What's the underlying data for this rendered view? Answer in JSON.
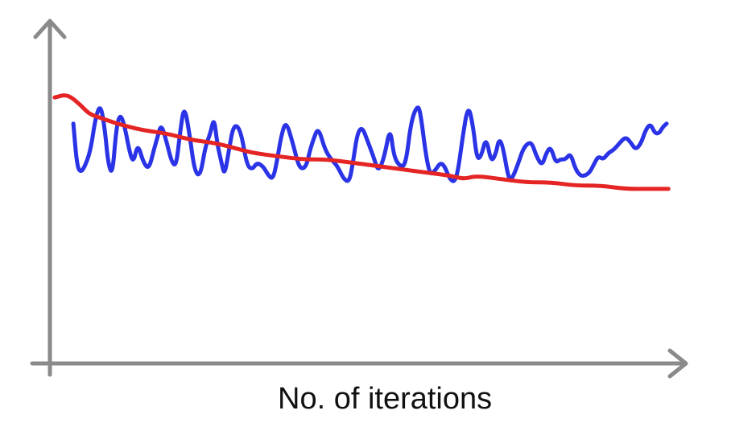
{
  "chart_data": {
    "type": "line",
    "xlabel": "No. of iterations",
    "ylabel": "",
    "xlim": [
      0,
      100
    ],
    "ylim": [
      0,
      100
    ],
    "grid": false,
    "legend": "none",
    "series": [
      {
        "color": "#2a33e6",
        "x": [
          3,
          3.6,
          4.2,
          4.9,
          5.8,
          6.6,
          7.4,
          8.1,
          8.6,
          9.3,
          9.9,
          10.5,
          11.2,
          12.1,
          12.7,
          13.4,
          14.3,
          15.2,
          16,
          16.6,
          17.2,
          18.1,
          18.9,
          19.6,
          20.2,
          20.9,
          21.8,
          22.6,
          23.5,
          24.3,
          25.1,
          25.7,
          26.2,
          26.9,
          27.4,
          28.1,
          28.9,
          30,
          31,
          31.9,
          32.6,
          33.6,
          34.5,
          35.2,
          35.8,
          36.5,
          37.3,
          38.4,
          39.2,
          39.8,
          40.6,
          41.2,
          41.7,
          42.5,
          43.6,
          44.6,
          45.6,
          46.6,
          47.5,
          48.1,
          48.8,
          49.6,
          50.4,
          51.4,
          52.2,
          53.2,
          54.1,
          54.7,
          55.6,
          56.6,
          57.5,
          58.6,
          59.1,
          59.9,
          60.6,
          61.5,
          62.2,
          62.9,
          63.7,
          64.5,
          65.1,
          65.8,
          66.7,
          67.5,
          68.1,
          68.8,
          69.6,
          70.4,
          71.2,
          71.6,
          72.2,
          73.3,
          74,
          74.8,
          75.5,
          76.3,
          77,
          77.7,
          78.6,
          79.3,
          80,
          80.8,
          81.5,
          82.4,
          83.2,
          84,
          84.8,
          85.5,
          86.3,
          87.1,
          87.7,
          88.5,
          89.3,
          90.2,
          91.1,
          92.1,
          93,
          93.7,
          94.6,
          95.3,
          96.1,
          96.8,
          97.5,
          98.1,
          98.7
        ],
        "y": [
          72,
          59,
          57,
          59,
          64,
          74,
          78,
          70,
          60,
          56,
          70,
          75,
          72,
          63,
          60,
          66,
          60,
          58,
          64,
          68,
          72,
          66,
          60,
          59,
          69,
          78,
          68,
          57,
          56,
          65,
          69,
          74,
          66,
          60,
          56,
          64,
          72,
          70,
          59,
          58,
          60,
          59,
          56,
          55,
          60,
          68,
          73,
          66,
          60,
          58,
          59,
          64,
          67,
          71,
          64,
          61,
          59,
          55,
          54,
          60,
          69,
          71,
          67,
          62,
          57,
          62,
          71,
          62,
          59,
          59,
          73,
          78,
          74,
          62,
          56,
          58,
          60,
          59,
          55,
          54,
          58,
          68,
          78,
          71,
          61,
          62,
          68,
          60,
          63,
          67,
          66,
          54,
          56,
          60,
          64,
          66,
          66,
          62,
          59,
          63,
          65,
          60,
          61,
          61,
          63,
          58,
          56,
          56,
          57,
          60,
          62,
          61,
          63,
          64,
          66,
          68,
          66,
          64,
          66,
          70,
          72,
          69,
          69,
          71,
          72
        ]
      },
      {
        "color": "#e52424",
        "x": [
          0,
          2,
          4,
          5.5,
          7,
          10,
          14,
          18,
          22,
          26,
          30,
          32,
          36,
          40,
          44,
          48,
          52,
          56,
          60,
          64,
          66,
          68,
          72,
          76,
          80,
          84,
          88,
          92,
          96,
          99
        ],
        "y": [
          80,
          81,
          78,
          75,
          74,
          72,
          70,
          69,
          67,
          66,
          64,
          63,
          62,
          61,
          61,
          60,
          59,
          58,
          57,
          56,
          55,
          56,
          55,
          54,
          54,
          53,
          53,
          52,
          52,
          52
        ]
      }
    ]
  }
}
